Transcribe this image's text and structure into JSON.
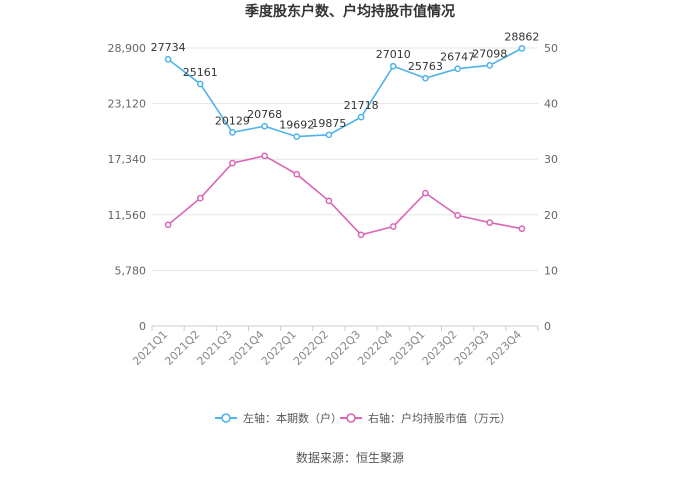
{
  "chart_data": {
    "type": "line",
    "title": "季度股东户数、户均持股市值情况",
    "categories": [
      "2021Q1",
      "2021Q2",
      "2021Q3",
      "2021Q4",
      "2022Q1",
      "2022Q2",
      "2022Q3",
      "2022Q4",
      "2023Q1",
      "2023Q2",
      "2023Q3",
      "2023Q4"
    ],
    "left_axis": {
      "min": 0,
      "max": 28900,
      "ticks": [
        0,
        5780,
        11560,
        17340,
        23120,
        28900
      ],
      "tick_labels": [
        "0",
        "5,780",
        "11,560",
        "17,340",
        "23,120",
        "28,900"
      ]
    },
    "right_axis": {
      "min": 0,
      "max": 50,
      "ticks": [
        0,
        10,
        20,
        30,
        40,
        50
      ],
      "tick_labels": [
        "0",
        "10",
        "20",
        "30",
        "40",
        "50"
      ]
    },
    "grid": true,
    "legend_position": "bottom",
    "series": [
      {
        "name": "左轴：本期数（户）",
        "axis": "left",
        "color": "#4fb3ea",
        "labels_shown": true,
        "values": [
          27734,
          25161,
          20129,
          20768,
          19692,
          19875,
          21718,
          27010,
          25763,
          26747,
          27098,
          28862
        ]
      },
      {
        "name": "右轴：户均持股市值（万元）",
        "axis": "right",
        "color": "#d966b5",
        "labels_shown": false,
        "values": [
          18.2,
          23.0,
          29.3,
          30.6,
          27.3,
          22.5,
          16.4,
          17.9,
          23.9,
          19.9,
          18.6,
          17.5
        ]
      }
    ],
    "source": "数据来源：恒生聚源"
  }
}
